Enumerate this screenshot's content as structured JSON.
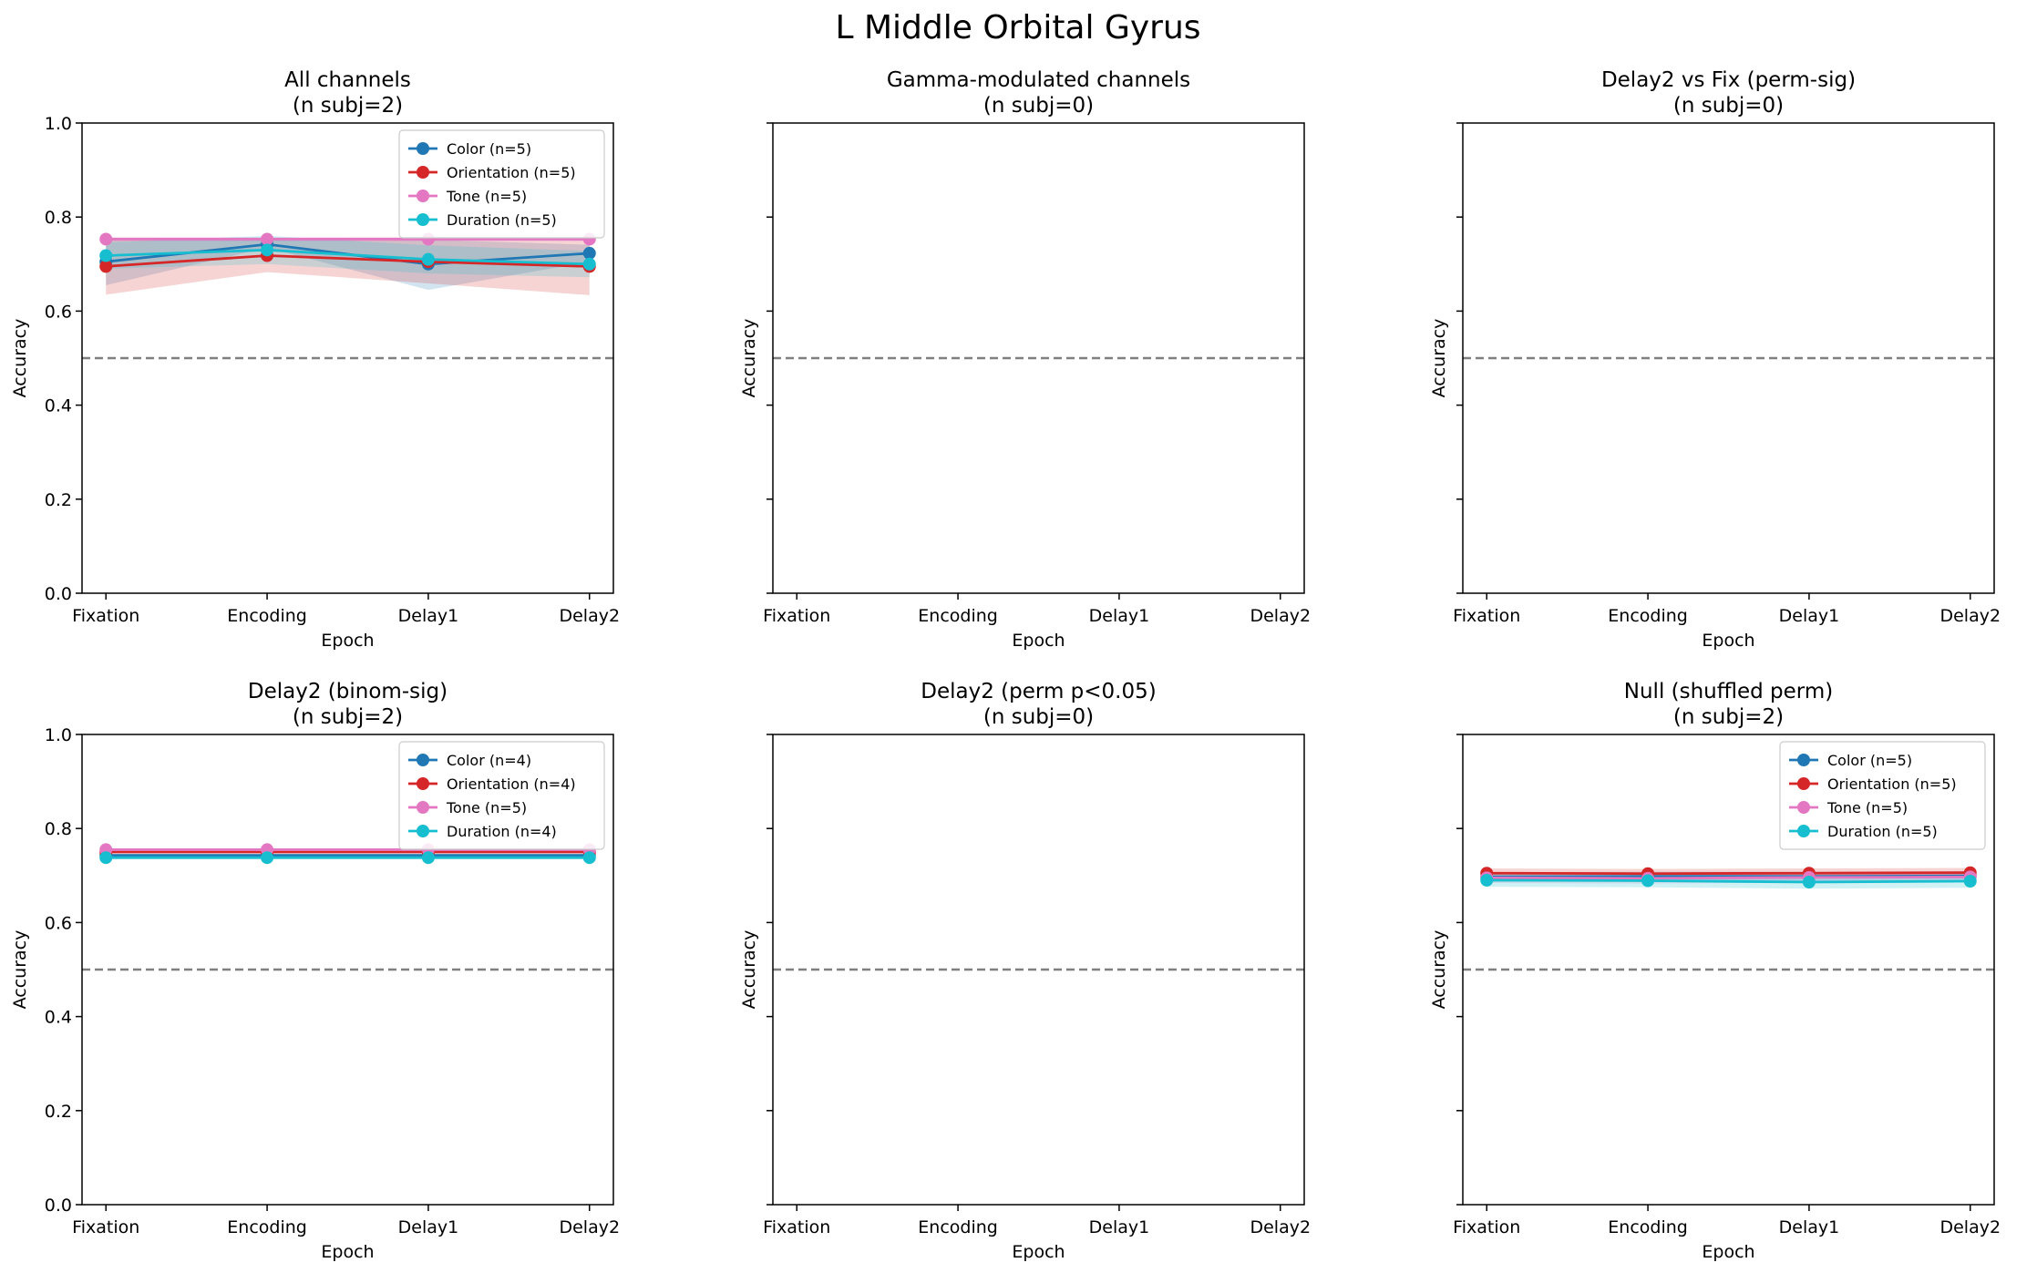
{
  "figure": {
    "title": "L Middle Orbital Gyrus"
  },
  "colors": {
    "Color": "#1f77b4",
    "Orientation": "#d62728",
    "Tone": "#e377c2",
    "Duration": "#17becf",
    "chance_line": "#7f7f7f"
  },
  "chart_data": [
    {
      "type": "line",
      "title": "All channels\n(n subj=2)",
      "xlabel": "Epoch",
      "ylabel": "Accuracy",
      "categories": [
        "Fixation",
        "Encoding",
        "Delay1",
        "Delay2"
      ],
      "ylim": [
        0,
        1
      ],
      "yticks": [
        "0.0",
        "0.2",
        "0.4",
        "0.6",
        "0.8",
        "1.0"
      ],
      "show_ytick_labels": true,
      "chance": 0.5,
      "legend_position": "top-right",
      "grid": false,
      "series": [
        {
          "name": "Color (n=5)",
          "key": "Color",
          "values": [
            0.705,
            0.742,
            0.7,
            0.723
          ],
          "lower": [
            0.655,
            0.735,
            0.645,
            0.705
          ],
          "upper": [
            0.755,
            0.752,
            0.752,
            0.741
          ]
        },
        {
          "name": "Orientation (n=5)",
          "key": "Orientation",
          "values": [
            0.695,
            0.718,
            0.705,
            0.695
          ],
          "lower": [
            0.635,
            0.683,
            0.659,
            0.634
          ],
          "upper": [
            0.755,
            0.755,
            0.751,
            0.756
          ]
        },
        {
          "name": "Tone (n=5)",
          "key": "Tone",
          "values": [
            0.753,
            0.753,
            0.753,
            0.753
          ],
          "lower": [
            0.748,
            0.748,
            0.748,
            0.748
          ],
          "upper": [
            0.758,
            0.758,
            0.758,
            0.758
          ]
        },
        {
          "name": "Duration (n=5)",
          "key": "Duration",
          "values": [
            0.718,
            0.73,
            0.71,
            0.7
          ],
          "lower": [
            0.69,
            0.7,
            0.68,
            0.672
          ],
          "upper": [
            0.746,
            0.76,
            0.74,
            0.728
          ]
        }
      ]
    },
    {
      "type": "line",
      "title": "Gamma-modulated channels\n(n subj=0)",
      "xlabel": "Epoch",
      "ylabel": "Accuracy",
      "categories": [
        "Fixation",
        "Encoding",
        "Delay1",
        "Delay2"
      ],
      "ylim": [
        0,
        1
      ],
      "yticks": [
        "0.0",
        "0.2",
        "0.4",
        "0.6",
        "0.8",
        "1.0"
      ],
      "show_ytick_labels": false,
      "chance": 0.5,
      "legend_position": "none",
      "grid": false,
      "series": []
    },
    {
      "type": "line",
      "title": "Delay2 vs Fix (perm-sig)\n(n subj=0)",
      "xlabel": "Epoch",
      "ylabel": "Accuracy",
      "categories": [
        "Fixation",
        "Encoding",
        "Delay1",
        "Delay2"
      ],
      "ylim": [
        0,
        1
      ],
      "yticks": [
        "0.0",
        "0.2",
        "0.4",
        "0.6",
        "0.8",
        "1.0"
      ],
      "show_ytick_labels": false,
      "chance": 0.5,
      "legend_position": "none",
      "grid": false,
      "series": []
    },
    {
      "type": "line",
      "title": "Delay2 (binom-sig)\n(n subj=2)",
      "xlabel": "Epoch",
      "ylabel": "Accuracy",
      "categories": [
        "Fixation",
        "Encoding",
        "Delay1",
        "Delay2"
      ],
      "ylim": [
        0,
        1
      ],
      "yticks": [
        "0.0",
        "0.2",
        "0.4",
        "0.6",
        "0.8",
        "1.0"
      ],
      "show_ytick_labels": true,
      "chance": 0.5,
      "legend_position": "top-right",
      "grid": false,
      "series": [
        {
          "name": "Color (n=4)",
          "key": "Color",
          "values": [
            0.743,
            0.743,
            0.743,
            0.743
          ],
          "lower": [
            0.74,
            0.74,
            0.74,
            0.74
          ],
          "upper": [
            0.746,
            0.746,
            0.746,
            0.746
          ]
        },
        {
          "name": "Orientation (n=4)",
          "key": "Orientation",
          "values": [
            0.75,
            0.75,
            0.75,
            0.75
          ],
          "lower": [
            0.747,
            0.747,
            0.747,
            0.747
          ],
          "upper": [
            0.753,
            0.753,
            0.753,
            0.753
          ]
        },
        {
          "name": "Tone (n=5)",
          "key": "Tone",
          "values": [
            0.755,
            0.755,
            0.755,
            0.755
          ],
          "lower": [
            0.752,
            0.752,
            0.752,
            0.752
          ],
          "upper": [
            0.758,
            0.758,
            0.758,
            0.758
          ]
        },
        {
          "name": "Duration (n=4)",
          "key": "Duration",
          "values": [
            0.738,
            0.738,
            0.738,
            0.738
          ],
          "lower": [
            0.735,
            0.735,
            0.735,
            0.735
          ],
          "upper": [
            0.741,
            0.741,
            0.741,
            0.741
          ]
        }
      ]
    },
    {
      "type": "line",
      "title": "Delay2 (perm p<0.05)\n(n subj=0)",
      "xlabel": "Epoch",
      "ylabel": "Accuracy",
      "categories": [
        "Fixation",
        "Encoding",
        "Delay1",
        "Delay2"
      ],
      "ylim": [
        0,
        1
      ],
      "yticks": [
        "0.0",
        "0.2",
        "0.4",
        "0.6",
        "0.8",
        "1.0"
      ],
      "show_ytick_labels": false,
      "chance": 0.5,
      "legend_position": "none",
      "grid": false,
      "series": []
    },
    {
      "type": "line",
      "title": "Null (shuffled perm)\n(n subj=2)",
      "xlabel": "Epoch",
      "ylabel": "Accuracy",
      "categories": [
        "Fixation",
        "Encoding",
        "Delay1",
        "Delay2"
      ],
      "ylim": [
        0,
        1
      ],
      "yticks": [
        "0.0",
        "0.2",
        "0.4",
        "0.6",
        "0.8",
        "1.0"
      ],
      "show_ytick_labels": false,
      "chance": 0.5,
      "legend_position": "top-right",
      "grid": false,
      "series": [
        {
          "name": "Color (n=5)",
          "key": "Color",
          "values": [
            0.697,
            0.698,
            0.698,
            0.699
          ],
          "lower": [
            0.687,
            0.688,
            0.688,
            0.689
          ],
          "upper": [
            0.707,
            0.708,
            0.708,
            0.709
          ]
        },
        {
          "name": "Orientation (n=5)",
          "key": "Orientation",
          "values": [
            0.705,
            0.704,
            0.705,
            0.706
          ],
          "lower": [
            0.695,
            0.694,
            0.695,
            0.696
          ],
          "upper": [
            0.715,
            0.714,
            0.715,
            0.716
          ]
        },
        {
          "name": "Tone (n=5)",
          "key": "Tone",
          "values": [
            0.695,
            0.694,
            0.696,
            0.697
          ],
          "lower": [
            0.684,
            0.683,
            0.685,
            0.686
          ],
          "upper": [
            0.706,
            0.705,
            0.707,
            0.708
          ]
        },
        {
          "name": "Duration (n=5)",
          "key": "Duration",
          "values": [
            0.69,
            0.689,
            0.686,
            0.688
          ],
          "lower": [
            0.676,
            0.675,
            0.672,
            0.674
          ],
          "upper": [
            0.704,
            0.703,
            0.7,
            0.702
          ]
        }
      ]
    }
  ]
}
